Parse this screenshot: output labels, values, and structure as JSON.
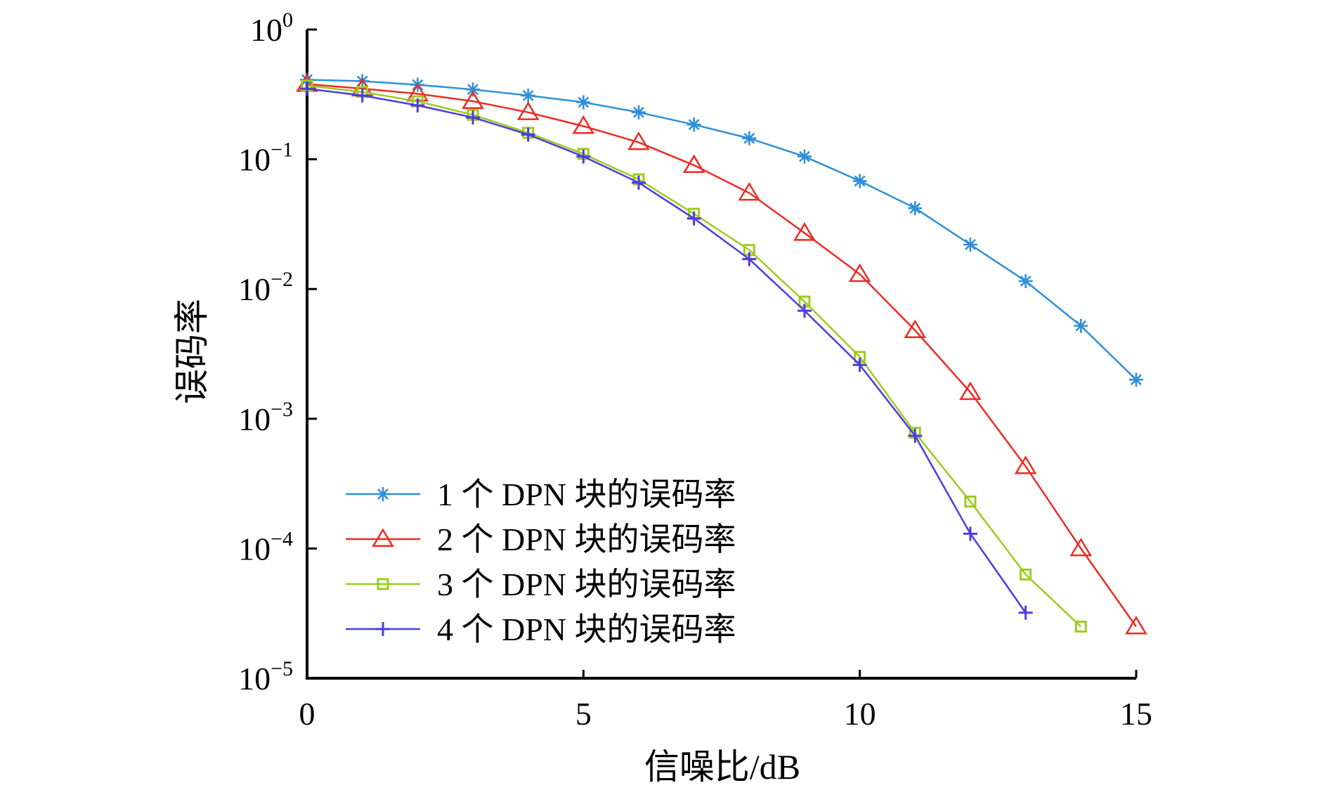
{
  "chart_data": {
    "type": "line",
    "title": "",
    "xlabel": "信噪比/dB",
    "ylabel": "误码率",
    "yscale": "log",
    "xlim": [
      0,
      15
    ],
    "ylim": [
      1e-05,
      1
    ],
    "grid": false,
    "legend_position": "bottom-left",
    "x_ticks": [
      {
        "value": 0,
        "label": "0"
      },
      {
        "value": 5,
        "label": "5"
      },
      {
        "value": 10,
        "label": "10"
      },
      {
        "value": 15,
        "label": "15"
      }
    ],
    "y_ticks": [
      {
        "value": 1,
        "base": "10",
        "exp": "0"
      },
      {
        "value": 0.1,
        "base": "10",
        "exp": "−1"
      },
      {
        "value": 0.01,
        "base": "10",
        "exp": "−2"
      },
      {
        "value": 0.001,
        "base": "10",
        "exp": "−3"
      },
      {
        "value": 0.0001,
        "base": "10",
        "exp": "−4"
      },
      {
        "value": 1e-05,
        "base": "10",
        "exp": "−5"
      }
    ],
    "series": [
      {
        "name": "1 个 DPN 块的误码率",
        "color": "#2f8fd8",
        "marker": "asterisk",
        "x": [
          0,
          1,
          2,
          3,
          4,
          5,
          6,
          7,
          8,
          9,
          10,
          11,
          12,
          13,
          14,
          15
        ],
        "y": [
          0.41,
          0.4,
          0.375,
          0.345,
          0.31,
          0.275,
          0.23,
          0.185,
          0.145,
          0.105,
          0.068,
          0.042,
          0.022,
          0.0115,
          0.0052,
          0.002
        ]
      },
      {
        "name": "2 个 DPN 块的误码率",
        "color": "#ee2b24",
        "marker": "triangle",
        "x": [
          0,
          1,
          2,
          3,
          4,
          5,
          6,
          7,
          8,
          9,
          10,
          11,
          12,
          13,
          14,
          15
        ],
        "y": [
          0.38,
          0.35,
          0.32,
          0.28,
          0.23,
          0.18,
          0.135,
          0.09,
          0.055,
          0.027,
          0.013,
          0.0048,
          0.0016,
          0.00043,
          0.0001,
          2.5e-05
        ]
      },
      {
        "name": "3 个 DPN 块的误码率",
        "color": "#9ccc1e",
        "marker": "square",
        "x": [
          0,
          1,
          2,
          3,
          4,
          5,
          6,
          7,
          8,
          9,
          10,
          11,
          12,
          13,
          14
        ],
        "y": [
          0.37,
          0.33,
          0.28,
          0.22,
          0.16,
          0.11,
          0.07,
          0.038,
          0.02,
          0.008,
          0.003,
          0.00078,
          0.00023,
          6.3e-05,
          2.5e-05
        ]
      },
      {
        "name": "4 个 DPN 块的误码率",
        "color": "#4b3de0",
        "marker": "plus",
        "x": [
          0,
          1,
          2,
          3,
          4,
          5,
          6,
          7,
          8,
          9,
          10,
          11,
          12,
          13
        ],
        "y": [
          0.35,
          0.31,
          0.26,
          0.21,
          0.155,
          0.105,
          0.066,
          0.035,
          0.017,
          0.0068,
          0.0026,
          0.00074,
          0.00013,
          3.2e-05
        ]
      }
    ]
  }
}
